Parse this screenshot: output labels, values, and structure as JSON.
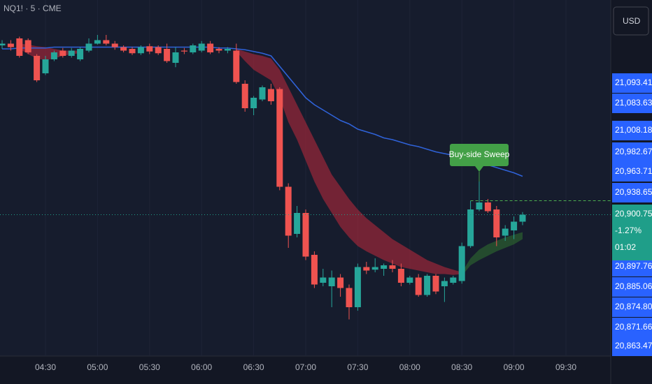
{
  "chart_data": {
    "type": "candlestick",
    "title": "NQ1! · 5 · CME",
    "currency_button": "USD",
    "categories": [
      null,
      null,
      null,
      null,
      null,
      "04:30",
      null,
      null,
      null,
      null,
      null,
      "05:00",
      null,
      null,
      null,
      null,
      null,
      "05:30",
      null,
      null,
      null,
      null,
      null,
      "06:00",
      null,
      null,
      null,
      null,
      null,
      "06:30",
      null,
      null,
      null,
      null,
      null,
      "07:00",
      null,
      null,
      null,
      null,
      null,
      "07:30",
      null,
      null,
      null,
      null,
      null,
      "08:00",
      null,
      null,
      null,
      null,
      null,
      "08:30",
      null,
      null,
      null,
      null,
      null,
      "09:00",
      null,
      null,
      null,
      null,
      null,
      "09:30"
    ],
    "open": [
      21098,
      21100,
      21106,
      21104,
      21086,
      21066,
      21082,
      21092,
      21086,
      21082,
      21092,
      21100,
      21104,
      21100,
      21096,
      21094,
      21089,
      21097,
      21096,
      21094,
      21078,
      21092,
      21090,
      21092,
      21100,
      21094,
      21092,
      21092,
      21054,
      21026,
      21036,
      21048,
      21048,
      20936,
      20882,
      20906,
      20858,
      20826,
      20822,
      20832,
      20820,
      20798,
      20844,
      20841,
      20842,
      20846,
      20842,
      20826,
      20832,
      20812,
      20834,
      20822,
      20826,
      20828,
      20868,
      20910,
      20918,
      20910,
      20880,
      20886,
      20896,
      null,
      null,
      null,
      null,
      null
    ],
    "high": [
      21104,
      21104,
      21108,
      21106,
      21088,
      21086,
      21092,
      21095,
      21095,
      21096,
      21106,
      21110,
      21110,
      21103,
      21098,
      21096,
      21098,
      21100,
      21098,
      21100,
      21096,
      21095,
      21100,
      21103,
      21103,
      21096,
      21096,
      21100,
      21058,
      21040,
      21052,
      21054,
      21050,
      20940,
      20914,
      20910,
      20862,
      20842,
      20840,
      20836,
      20824,
      20848,
      20850,
      20854,
      20848,
      20852,
      20848,
      20834,
      20836,
      20836,
      20836,
      20832,
      20834,
      20872,
      20920,
      20942,
      20922,
      20914,
      20892,
      20902,
      20907,
      null,
      null,
      null,
      null,
      null
    ],
    "low": [
      21094,
      21092,
      21084,
      21088,
      21056,
      21064,
      21080,
      21084,
      21084,
      21080,
      21090,
      21099,
      21098,
      21093,
      21090,
      21087,
      21087,
      21088,
      21087,
      21078,
      21073,
      21088,
      21088,
      21090,
      21088,
      21089,
      21089,
      21054,
      21022,
      21018,
      21034,
      21030,
      20932,
      20866,
      20878,
      20852,
      20820,
      20822,
      20798,
      20810,
      20784,
      20794,
      20836,
      20838,
      20834,
      20838,
      20822,
      20824,
      20810,
      20810,
      20813,
      20804,
      20824,
      20825,
      20866,
      20908,
      20906,
      20868,
      20874,
      20876,
      20892,
      null,
      null,
      null,
      null,
      null
    ],
    "close": [
      21100,
      21096,
      21086,
      21090,
      21058,
      21082,
      21090,
      21086,
      21092,
      21094,
      21100,
      21104,
      21100,
      21096,
      21092,
      21089,
      21096,
      21091,
      21089,
      21080,
      21090,
      21091,
      21098,
      21100,
      21090,
      21092,
      21094,
      21056,
      21026,
      21038,
      21050,
      21034,
      20936,
      20880,
      20906,
      20856,
      20824,
      20832,
      20832,
      20820,
      20798,
      20844,
      20840,
      20844,
      20846,
      20842,
      20826,
      20832,
      20812,
      20834,
      20816,
      20828,
      20832,
      20868,
      20910,
      20918,
      20908,
      20878,
      20888,
      20896,
      20904,
      null,
      null,
      null,
      null,
      null
    ],
    "up_color": "#26a69a",
    "down_color": "#ef5350",
    "ma": {
      "color": "#2f62d8",
      "values": [
        21094,
        21094,
        21095,
        21095,
        21095,
        21095,
        21096,
        21096,
        21096,
        21096,
        21096,
        21096,
        21096,
        21096,
        21096,
        21096,
        21096,
        21096,
        21096,
        21096,
        21096,
        21096,
        21096,
        21096,
        21096,
        21095,
        21095,
        21094,
        21093,
        21091,
        21089,
        21086,
        21074,
        21062,
        21050,
        21038,
        21030,
        21024,
        21018,
        21012,
        21008,
        21002,
        20999,
        20996,
        20992,
        20990,
        20987,
        20984,
        20982,
        20979,
        20976,
        20974,
        20972,
        20970,
        20968,
        20964,
        20961,
        20958,
        20955,
        20952,
        20948,
        null,
        null,
        null,
        null,
        null
      ]
    },
    "bands": [
      {
        "color": "#b2283a",
        "upper": [
          null,
          null,
          21100,
          21099,
          21097,
          21096,
          21094,
          21092,
          21092,
          21092,
          null,
          null,
          null,
          null,
          null,
          null,
          null,
          null,
          null,
          null,
          null,
          null,
          null,
          null,
          null,
          null,
          null,
          21094,
          21091,
          21088,
          21086,
          21083,
          21070,
          21050,
          21030,
          21010,
          20990,
          20970,
          20950,
          20936,
          20922,
          20910,
          20900,
          20892,
          20884,
          20876,
          20870,
          20864,
          20858,
          20852,
          20848,
          20844,
          20841,
          20838,
          null,
          null,
          null,
          null,
          null,
          null,
          null,
          null,
          null,
          null,
          null,
          null
        ],
        "lower": [
          null,
          null,
          21094,
          21088,
          21083,
          21081,
          21083,
          21086,
          21088,
          21089,
          null,
          null,
          null,
          null,
          null,
          null,
          null,
          null,
          null,
          null,
          null,
          null,
          null,
          null,
          null,
          null,
          null,
          21091,
          21080,
          21070,
          21064,
          21058,
          21038,
          21010,
          20990,
          20966,
          20942,
          20922,
          20906,
          20890,
          20878,
          20868,
          20862,
          20857,
          20852,
          20848,
          20844,
          20842,
          20840,
          20838,
          20836,
          20836,
          20835,
          20836,
          null,
          null,
          null,
          null,
          null,
          null,
          null,
          null,
          null,
          null,
          null,
          null
        ]
      },
      {
        "color": "#2e6b2e",
        "upper": [
          null,
          null,
          null,
          null,
          null,
          null,
          null,
          null,
          null,
          null,
          null,
          null,
          null,
          null,
          null,
          null,
          null,
          null,
          null,
          null,
          null,
          null,
          null,
          null,
          null,
          null,
          null,
          null,
          null,
          null,
          null,
          null,
          null,
          null,
          null,
          null,
          null,
          null,
          null,
          null,
          null,
          null,
          null,
          null,
          null,
          null,
          null,
          null,
          null,
          null,
          null,
          null,
          null,
          20838,
          20854,
          20864,
          20870,
          20874,
          20878,
          20881,
          20884,
          null,
          null,
          null,
          null,
          null
        ],
        "lower": [
          null,
          null,
          null,
          null,
          null,
          null,
          null,
          null,
          null,
          null,
          null,
          null,
          null,
          null,
          null,
          null,
          null,
          null,
          null,
          null,
          null,
          null,
          null,
          null,
          null,
          null,
          null,
          null,
          null,
          null,
          null,
          null,
          null,
          null,
          null,
          null,
          null,
          null,
          null,
          null,
          null,
          null,
          null,
          null,
          null,
          null,
          null,
          null,
          null,
          null,
          null,
          null,
          null,
          20834,
          20846,
          20852,
          20857,
          20862,
          20866,
          20870,
          20876,
          null,
          null,
          null,
          null,
          null
        ]
      }
    ],
    "sweep_level": 20920,
    "annotation": {
      "text": "Buy-side Sweep",
      "color": "#43a047"
    },
    "ylim": [
      20742,
      21150
    ],
    "price_labels": [
      "21,093.41",
      "21,083.63",
      "21,008.18",
      "20,982.67",
      "20,963.71",
      "20,938.65",
      "20,897.76",
      "20,885.06",
      "20,874.80",
      "20,871.66",
      "20,863.47"
    ],
    "label_color": "#2962ff",
    "last_price_badge": [
      "20,900.75",
      "-1.27%",
      "01:02"
    ],
    "badge_color": "#1f9e89"
  }
}
